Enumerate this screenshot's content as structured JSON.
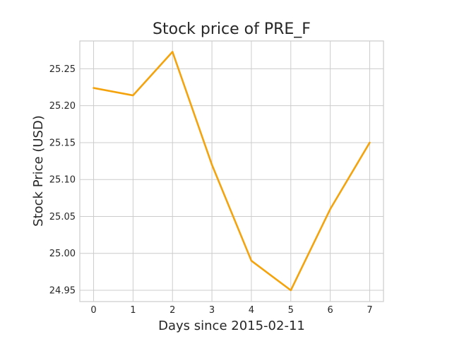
{
  "chart_data": {
    "type": "line",
    "title": "Stock price of PRE_F",
    "xlabel": "Days since 2015-02-11",
    "ylabel": "Stock Price (USD)",
    "x": [
      0,
      1,
      2,
      3,
      4,
      5,
      6,
      7
    ],
    "series": [
      {
        "values": [
          25.224,
          25.214,
          25.273,
          25.12,
          24.99,
          24.95,
          25.06,
          25.15
        ]
      }
    ],
    "xticks": [
      "0",
      "1",
      "2",
      "3",
      "4",
      "5",
      "6",
      "7"
    ],
    "yticks": [
      "24.95",
      "25.00",
      "25.05",
      "25.10",
      "25.15",
      "25.20",
      "25.25"
    ],
    "xlim": [
      -0.35,
      7.35
    ],
    "ylim": [
      24.9347,
      25.2877
    ],
    "grid": true,
    "line_color": "#f4a30c"
  }
}
